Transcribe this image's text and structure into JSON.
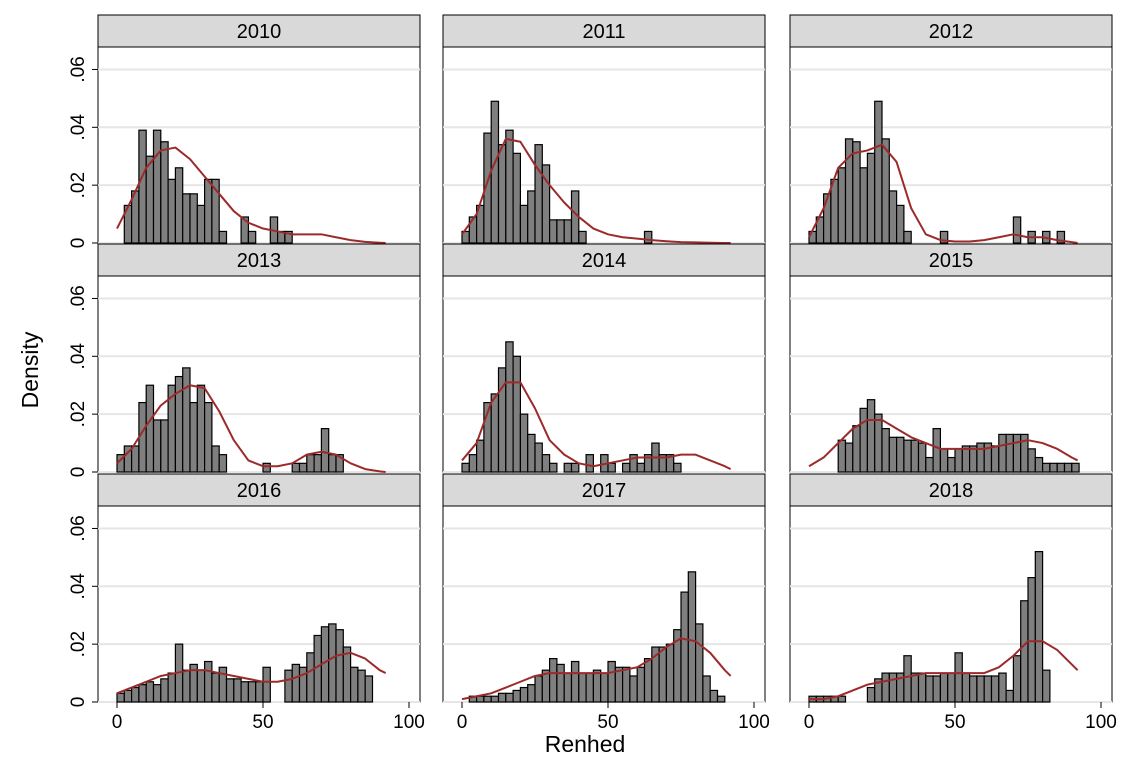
{
  "chart_data": {
    "type": "bar",
    "layout": "3x3 facet grid of histograms with kernel density overlay",
    "xlabel": "Renhed",
    "ylabel": "Density",
    "xlim": [
      0,
      100
    ],
    "ylim": [
      0,
      0.065
    ],
    "xticks": [
      0,
      50,
      100
    ],
    "xtick_labels": [
      "0",
      "50",
      "100"
    ],
    "yticks": [
      0,
      0.02,
      0.04,
      0.06
    ],
    "ytick_labels": [
      "0",
      ".02",
      ".04",
      ".06"
    ],
    "grid": "horizontal",
    "bin_width": 2.5,
    "colors": {
      "bar_fill": "#7f7f7f",
      "bar_stroke": "#000000",
      "density_line": "#9c2a2a",
      "strip_fill": "#d9d9d9",
      "grid": "#e6e6e6"
    },
    "panels": [
      {
        "title": "2010",
        "bins_start": 2.5,
        "values": [
          0.013,
          0.018,
          0.039,
          0.03,
          0.039,
          0.035,
          0.022,
          0.026,
          0.017,
          0.017,
          0.013,
          0.022,
          0.022,
          0.004,
          0,
          0,
          0.009,
          0.004,
          0,
          0,
          0.009,
          0.004,
          0.004
        ],
        "density_x": [
          0,
          5,
          10,
          15,
          20,
          25,
          30,
          35,
          40,
          45,
          50,
          55,
          60,
          65,
          70,
          75,
          80,
          85,
          90,
          92
        ],
        "density_y": [
          0.005,
          0.015,
          0.026,
          0.032,
          0.033,
          0.029,
          0.023,
          0.017,
          0.011,
          0.007,
          0.005,
          0.004,
          0.003,
          0.003,
          0.003,
          0.002,
          0.001,
          0.0004,
          0.0001,
          0
        ]
      },
      {
        "title": "2011",
        "bins_start": 0,
        "values": [
          0.004,
          0.009,
          0.013,
          0.038,
          0.049,
          0.034,
          0.039,
          0.031,
          0.013,
          0.018,
          0.034,
          0.027,
          0.008,
          0.008,
          0.008,
          0.018,
          0.004,
          0,
          0,
          0,
          0,
          0,
          0,
          0,
          0,
          0.004
        ],
        "density_x": [
          0,
          5,
          10,
          15,
          20,
          25,
          30,
          35,
          40,
          45,
          50,
          55,
          60,
          65,
          70,
          75,
          80,
          85,
          90,
          92
        ],
        "density_y": [
          0.003,
          0.01,
          0.025,
          0.036,
          0.035,
          0.027,
          0.02,
          0.014,
          0.009,
          0.005,
          0.003,
          0.002,
          0.0015,
          0.001,
          0.0006,
          0.0003,
          0.0002,
          0.0001,
          0,
          0
        ]
      },
      {
        "title": "2012",
        "bins_start": 0,
        "values": [
          0.004,
          0.009,
          0.017,
          0.022,
          0.026,
          0.036,
          0.035,
          0.026,
          0.031,
          0.049,
          0.036,
          0.018,
          0.013,
          0.004,
          0,
          0,
          0,
          0,
          0.004,
          0,
          0,
          0,
          0,
          0,
          0,
          0,
          0,
          0,
          0.009,
          0,
          0.004,
          0,
          0.004,
          0,
          0.004
        ],
        "density_x": [
          0,
          5,
          10,
          15,
          20,
          25,
          30,
          35,
          40,
          45,
          50,
          55,
          60,
          65,
          70,
          75,
          80,
          85,
          90,
          92
        ],
        "density_y": [
          0.002,
          0.012,
          0.026,
          0.031,
          0.032,
          0.034,
          0.028,
          0.012,
          0.003,
          0.001,
          0.0005,
          0.0005,
          0.001,
          0.002,
          0.003,
          0.002,
          0.002,
          0.001,
          0.0003,
          0
        ]
      },
      {
        "title": "2013",
        "bins_start": 0,
        "values": [
          0.006,
          0.009,
          0.009,
          0.024,
          0.03,
          0.018,
          0.018,
          0.03,
          0.033,
          0.036,
          0.024,
          0.03,
          0.024,
          0.009,
          0.006,
          0,
          0,
          0,
          0,
          0,
          0.003,
          0,
          0,
          0,
          0.003,
          0.003,
          0.006,
          0.006,
          0.015,
          0.006,
          0.006
        ],
        "density_x": [
          0,
          5,
          10,
          15,
          20,
          25,
          30,
          35,
          40,
          45,
          50,
          55,
          60,
          65,
          70,
          75,
          80,
          85,
          90,
          92
        ],
        "density_y": [
          0.003,
          0.008,
          0.016,
          0.023,
          0.027,
          0.03,
          0.029,
          0.021,
          0.011,
          0.004,
          0.002,
          0.002,
          0.003,
          0.006,
          0.007,
          0.006,
          0.003,
          0.001,
          0.0002,
          0
        ]
      },
      {
        "title": "2014",
        "bins_start": 0,
        "values": [
          0.003,
          0.006,
          0.011,
          0.024,
          0.027,
          0.036,
          0.045,
          0.04,
          0.02,
          0.013,
          0.01,
          0.006,
          0.003,
          0,
          0.003,
          0.003,
          0,
          0.006,
          0,
          0.006,
          0.003,
          0,
          0.003,
          0.006,
          0.003,
          0.006,
          0.01,
          0.006,
          0.006,
          0.003
        ],
        "density_x": [
          0,
          5,
          10,
          15,
          20,
          25,
          30,
          35,
          40,
          45,
          50,
          55,
          60,
          65,
          70,
          75,
          80,
          85,
          90,
          92
        ],
        "density_y": [
          0.004,
          0.01,
          0.024,
          0.031,
          0.031,
          0.022,
          0.011,
          0.006,
          0.003,
          0.002,
          0.003,
          0.004,
          0.005,
          0.005,
          0.005,
          0.006,
          0.006,
          0.004,
          0.002,
          0.001
        ]
      },
      {
        "title": "2015",
        "bins_start": 10,
        "values": [
          0.011,
          0.01,
          0.016,
          0.022,
          0.025,
          0.02,
          0.015,
          0.012,
          0.012,
          0.011,
          0.011,
          0.01,
          0.005,
          0.015,
          0.008,
          0.005,
          0.008,
          0.009,
          0.009,
          0.01,
          0.01,
          0.009,
          0.013,
          0.013,
          0.013,
          0.013,
          0.008,
          0.005,
          0.003,
          0.003,
          0.003,
          0.003,
          0.003
        ],
        "density_x": [
          0,
          5,
          10,
          15,
          20,
          25,
          30,
          35,
          40,
          45,
          50,
          55,
          60,
          65,
          70,
          75,
          80,
          85,
          90,
          92
        ],
        "density_y": [
          0.002,
          0.005,
          0.01,
          0.015,
          0.018,
          0.018,
          0.015,
          0.012,
          0.01,
          0.008,
          0.008,
          0.008,
          0.008,
          0.009,
          0.01,
          0.011,
          0.01,
          0.008,
          0.005,
          0.004
        ]
      },
      {
        "title": "2016",
        "bins_start": 0,
        "values": [
          0.003,
          0.004,
          0.005,
          0.006,
          0.007,
          0.006,
          0.008,
          0.01,
          0.02,
          0.011,
          0.013,
          0.011,
          0.014,
          0.01,
          0.012,
          0.008,
          0.008,
          0.007,
          0.007,
          0.007,
          0.012,
          0,
          0,
          0.011,
          0.013,
          0.012,
          0.017,
          0.023,
          0.026,
          0.027,
          0.025,
          0.019,
          0.012,
          0.011,
          0.009
        ],
        "density_x": [
          0,
          5,
          10,
          15,
          20,
          25,
          30,
          35,
          40,
          45,
          50,
          55,
          60,
          65,
          70,
          75,
          80,
          85,
          90,
          92
        ],
        "density_y": [
          0.003,
          0.005,
          0.007,
          0.009,
          0.01,
          0.011,
          0.011,
          0.01,
          0.009,
          0.008,
          0.007,
          0.007,
          0.008,
          0.01,
          0.013,
          0.016,
          0.017,
          0.015,
          0.011,
          0.01
        ]
      },
      {
        "title": "2017",
        "bins_start": 0,
        "values": [
          0,
          0.002,
          0.002,
          0.002,
          0.002,
          0.003,
          0.003,
          0.004,
          0.005,
          0.006,
          0.009,
          0.011,
          0.015,
          0.013,
          0.01,
          0.014,
          0.01,
          0.01,
          0.011,
          0.01,
          0.014,
          0.012,
          0.012,
          0.009,
          0.012,
          0.015,
          0.019,
          0.019,
          0.02,
          0.025,
          0.038,
          0.045,
          0.027,
          0.009,
          0.004,
          0.002
        ],
        "density_x": [
          0,
          5,
          10,
          15,
          20,
          25,
          30,
          35,
          40,
          45,
          50,
          55,
          60,
          65,
          70,
          75,
          80,
          85,
          90,
          92
        ],
        "density_y": [
          0.001,
          0.002,
          0.003,
          0.005,
          0.007,
          0.009,
          0.01,
          0.01,
          0.01,
          0.01,
          0.01,
          0.011,
          0.012,
          0.015,
          0.019,
          0.022,
          0.021,
          0.017,
          0.011,
          0.009
        ]
      },
      {
        "title": "2018",
        "bins_start": 0,
        "values": [
          0.002,
          0.002,
          0.002,
          0.002,
          0.002,
          0,
          0,
          0,
          0.005,
          0.008,
          0.01,
          0.01,
          0.01,
          0.016,
          0.01,
          0.01,
          0.009,
          0.009,
          0.01,
          0.01,
          0.017,
          0.01,
          0.009,
          0.009,
          0.009,
          0.009,
          0.01,
          0.004,
          0.016,
          0.035,
          0.043,
          0.052,
          0.011
        ],
        "density_x": [
          0,
          5,
          10,
          15,
          20,
          25,
          30,
          35,
          40,
          45,
          50,
          55,
          60,
          65,
          70,
          75,
          80,
          85,
          90,
          92
        ],
        "density_y": [
          0.001,
          0.001,
          0.002,
          0.004,
          0.006,
          0.007,
          0.008,
          0.009,
          0.01,
          0.01,
          0.01,
          0.01,
          0.01,
          0.012,
          0.016,
          0.021,
          0.021,
          0.018,
          0.013,
          0.011
        ]
      }
    ]
  }
}
